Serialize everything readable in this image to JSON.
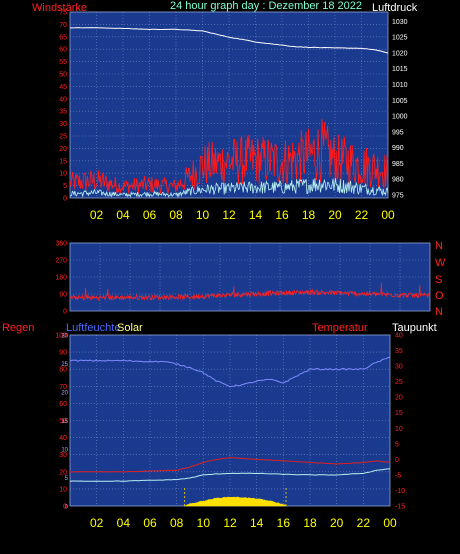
{
  "header": {
    "title": "24 hour graph day : Dezember 18 2022",
    "left_label": "Windstärke",
    "right_label": "Luftdruck"
  },
  "middle": {
    "direction_labels": [
      "N",
      "W",
      "S",
      "O",
      "N"
    ]
  },
  "bottom": {
    "labels": {
      "rain": "Regen",
      "humidity": "Luftfeuchte",
      "solar": "Solar",
      "temperature": "Temperatur",
      "dewpoint": "Taupunkt"
    }
  },
  "colors": {
    "plot_bg": "#1a3a8f",
    "grid": "#6f86c4",
    "wind": "#ff1a1a",
    "gust": "#b8f0f0",
    "pressure": "#ffffff",
    "direction": "#ff2020",
    "humidity": "#7f8cff",
    "temperature": "#e02020",
    "dewpoint": "#b8f0f0",
    "solar": "#ffe000",
    "title": "#7fffd4",
    "red_label": "#ff2020",
    "blue_label": "#4a6aff",
    "solar_label": "#ffff80",
    "time_ticks": "#ffff00"
  },
  "chart_data": [
    {
      "type": "line",
      "name": "wind_and_pressure",
      "x_ticks": [
        "02",
        "04",
        "06",
        "08",
        "10",
        "12",
        "14",
        "16",
        "18",
        "20",
        "22",
        "00"
      ],
      "x_range_hours": [
        0,
        24
      ],
      "y_left": {
        "label": "Windstärke",
        "ticks": [
          0,
          5,
          10,
          15,
          20,
          25,
          30,
          35,
          40,
          45,
          50,
          55,
          60,
          65,
          70,
          75
        ],
        "range": [
          0,
          75
        ]
      },
      "y_right": {
        "label": "Luftdruck",
        "ticks": [
          975,
          980,
          985,
          990,
          995,
          1000,
          1005,
          1010,
          1015,
          1020,
          1025,
          1030
        ],
        "range": [
          974,
          1033
        ]
      },
      "grid": true,
      "series": [
        {
          "name": "Luftdruck",
          "axis": "right",
          "x": [
            0,
            2,
            4,
            6,
            8,
            10,
            11,
            12,
            13,
            14,
            15,
            16,
            17,
            18,
            20,
            22,
            23,
            24
          ],
          "y": [
            1028,
            1028,
            1027.8,
            1027.5,
            1027.5,
            1027,
            1026,
            1025,
            1024.3,
            1023.5,
            1023,
            1022.5,
            1022,
            1021.8,
            1021.6,
            1021.5,
            1021,
            1020
          ]
        },
        {
          "axis": "left",
          "x": [
            0,
            2,
            4,
            6,
            8,
            9,
            10,
            12,
            14,
            16,
            18,
            19,
            20,
            21,
            22,
            23,
            24
          ],
          "y": [
            8,
            9,
            6,
            7,
            6,
            11,
            17,
            19,
            20,
            19,
            22,
            25,
            20,
            19,
            17,
            16,
            14
          ]
        },
        {
          "axis": "left",
          "x": [
            0,
            2,
            4,
            6,
            8,
            9,
            10,
            12,
            14,
            16,
            18,
            19,
            20,
            21,
            22,
            23,
            24
          ],
          "y": [
            2,
            2.5,
            1.5,
            2,
            1.5,
            3,
            4,
            4.5,
            5,
            5,
            6,
            7,
            6,
            5.5,
            4.5,
            4,
            3
          ]
        }
      ]
    },
    {
      "type": "line",
      "name": "wind_direction",
      "y": {
        "ticks": [
          0,
          90,
          180,
          270,
          360
        ],
        "range": [
          0,
          360
        ]
      },
      "direction_labels": [
        "N",
        "W",
        "S",
        "O",
        "N"
      ],
      "grid": true,
      "series": [
        {
          "x": [
            0,
            4,
            8,
            12,
            16,
            20,
            24
          ],
          "y": [
            70,
            72,
            75,
            90,
            100,
            90,
            80
          ]
        }
      ]
    },
    {
      "type": "line",
      "name": "climate",
      "x_ticks": [
        "02",
        "04",
        "06",
        "08",
        "10",
        "12",
        "14",
        "16",
        "18",
        "20",
        "22",
        "00"
      ],
      "y_rain": {
        "label": "Regen",
        "ticks": [
          0,
          10,
          20,
          30,
          40,
          50,
          60,
          70,
          80,
          90,
          100
        ],
        "range": [
          0,
          100
        ]
      },
      "y_solar": {
        "label": "Solar",
        "ticks": [
          0,
          5,
          10,
          15,
          20,
          25,
          30
        ],
        "range": [
          0,
          30
        ]
      },
      "y_temp": {
        "label": "Temperatur",
        "ticks": [
          -15,
          -10,
          -5,
          0,
          5,
          10,
          15,
          20,
          25,
          30,
          35,
          40
        ],
        "range": [
          -15,
          40
        ]
      },
      "grid": true,
      "series": [
        {
          "name": "Luftfeuchte",
          "axis": "rain",
          "x": [
            0,
            2,
            4,
            6,
            7,
            8,
            9,
            10,
            11,
            12,
            13,
            14,
            15,
            16,
            17,
            18,
            20,
            22,
            23,
            24
          ],
          "y": [
            85,
            85,
            85,
            84.5,
            84.5,
            83,
            81,
            78,
            73,
            70,
            71,
            73,
            74,
            72,
            76,
            80,
            80,
            80,
            84,
            87
          ]
        },
        {
          "name": "Temperatur",
          "axis": "temp",
          "x": [
            0,
            4,
            8,
            9,
            10,
            11,
            12,
            13,
            14,
            16,
            18,
            20,
            22,
            23,
            24
          ],
          "y": [
            -4,
            -4,
            -3.5,
            -2.5,
            -1,
            0,
            0.5,
            0.3,
            0,
            -0.5,
            -1,
            -1.5,
            -1,
            -0.5,
            -1
          ]
        },
        {
          "name": "Taupunkt",
          "axis": "temp",
          "x": [
            0,
            4,
            8,
            9,
            10,
            11,
            12,
            13,
            14,
            16,
            18,
            20,
            22,
            23,
            24
          ],
          "y": [
            -7,
            -7,
            -6.5,
            -6,
            -5,
            -4.7,
            -4.5,
            -4.5,
            -4.5,
            -4.8,
            -5,
            -5,
            -4.5,
            -3.5,
            -3
          ]
        },
        {
          "name": "Solar",
          "axis": "solar",
          "x": [
            8.6,
            9,
            10,
            11,
            12,
            13,
            14,
            15,
            16,
            16.2
          ],
          "y": [
            0,
            0.3,
            0.8,
            1.3,
            1.5,
            1.4,
            1.2,
            0.8,
            0.2,
            0
          ]
        }
      ]
    }
  ]
}
